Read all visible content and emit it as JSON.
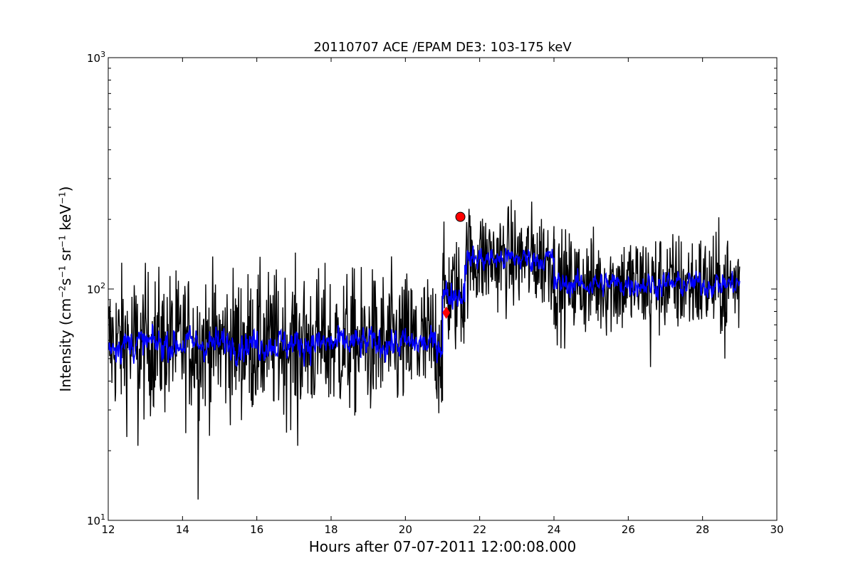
{
  "chart_data": {
    "type": "line",
    "title": "20110707 ACE /EPAM DE3: 103-175 keV",
    "xlabel": "Hours after 07-07-2011 12:00:08.000",
    "ylabel": {
      "prefix": "Intensity (cm",
      "exp1": "−2",
      "part2": "s",
      "exp2": "−1",
      "part3": "sr",
      "exp3": "−1",
      "part4": "keV",
      "exp4": "−1",
      "suffix": ")"
    },
    "xlim": [
      12,
      30
    ],
    "ylim": [
      10,
      1000
    ],
    "yscale": "log",
    "xticks": [
      12,
      14,
      16,
      18,
      20,
      22,
      24,
      26,
      28,
      30
    ],
    "yticks": [
      {
        "base": "10",
        "exp": "1"
      },
      {
        "base": "10",
        "exp": "2"
      },
      {
        "base": "10",
        "exp": "3"
      }
    ],
    "series": [
      {
        "color": "#000000",
        "style": "line",
        "segments": [
          {
            "x_start": 12.0,
            "x_end": 21.0,
            "center": 58,
            "spread": 0.22
          },
          {
            "x_start": 21.0,
            "x_end": 21.6,
            "center": 95,
            "spread": 0.18
          },
          {
            "x_start": 21.6,
            "x_end": 24.0,
            "center": 135,
            "spread": 0.16
          },
          {
            "x_start": 24.0,
            "x_end": 29.0,
            "center": 105,
            "spread": 0.16
          }
        ],
        "extremes": [
          {
            "x": 14.42,
            "y": 12.3
          },
          {
            "x": 17.1,
            "y": 21
          },
          {
            "x": 12.8,
            "y": 21
          },
          {
            "x": 21.72,
            "y": 185
          },
          {
            "x": 26.6,
            "y": 46
          },
          {
            "x": 28.6,
            "y": 50
          }
        ]
      },
      {
        "color": "#0000ff",
        "style": "line",
        "segments": [
          {
            "x_start": 12.0,
            "x_end": 21.0,
            "center": 58,
            "spread": 0.09
          },
          {
            "x_start": 21.0,
            "x_end": 21.6,
            "center": 95,
            "spread": 0.08
          },
          {
            "x_start": 21.6,
            "x_end": 24.0,
            "center": 135,
            "spread": 0.07
          },
          {
            "x_start": 24.0,
            "x_end": 29.0,
            "center": 105,
            "spread": 0.07
          }
        ]
      }
    ],
    "markers": [
      {
        "x": 21.48,
        "y": 205,
        "shape": "circle",
        "color": "#ff0000"
      },
      {
        "x": 21.1,
        "y": 79,
        "shape": "diamond",
        "color": "#ff0000"
      }
    ],
    "grid": false
  }
}
